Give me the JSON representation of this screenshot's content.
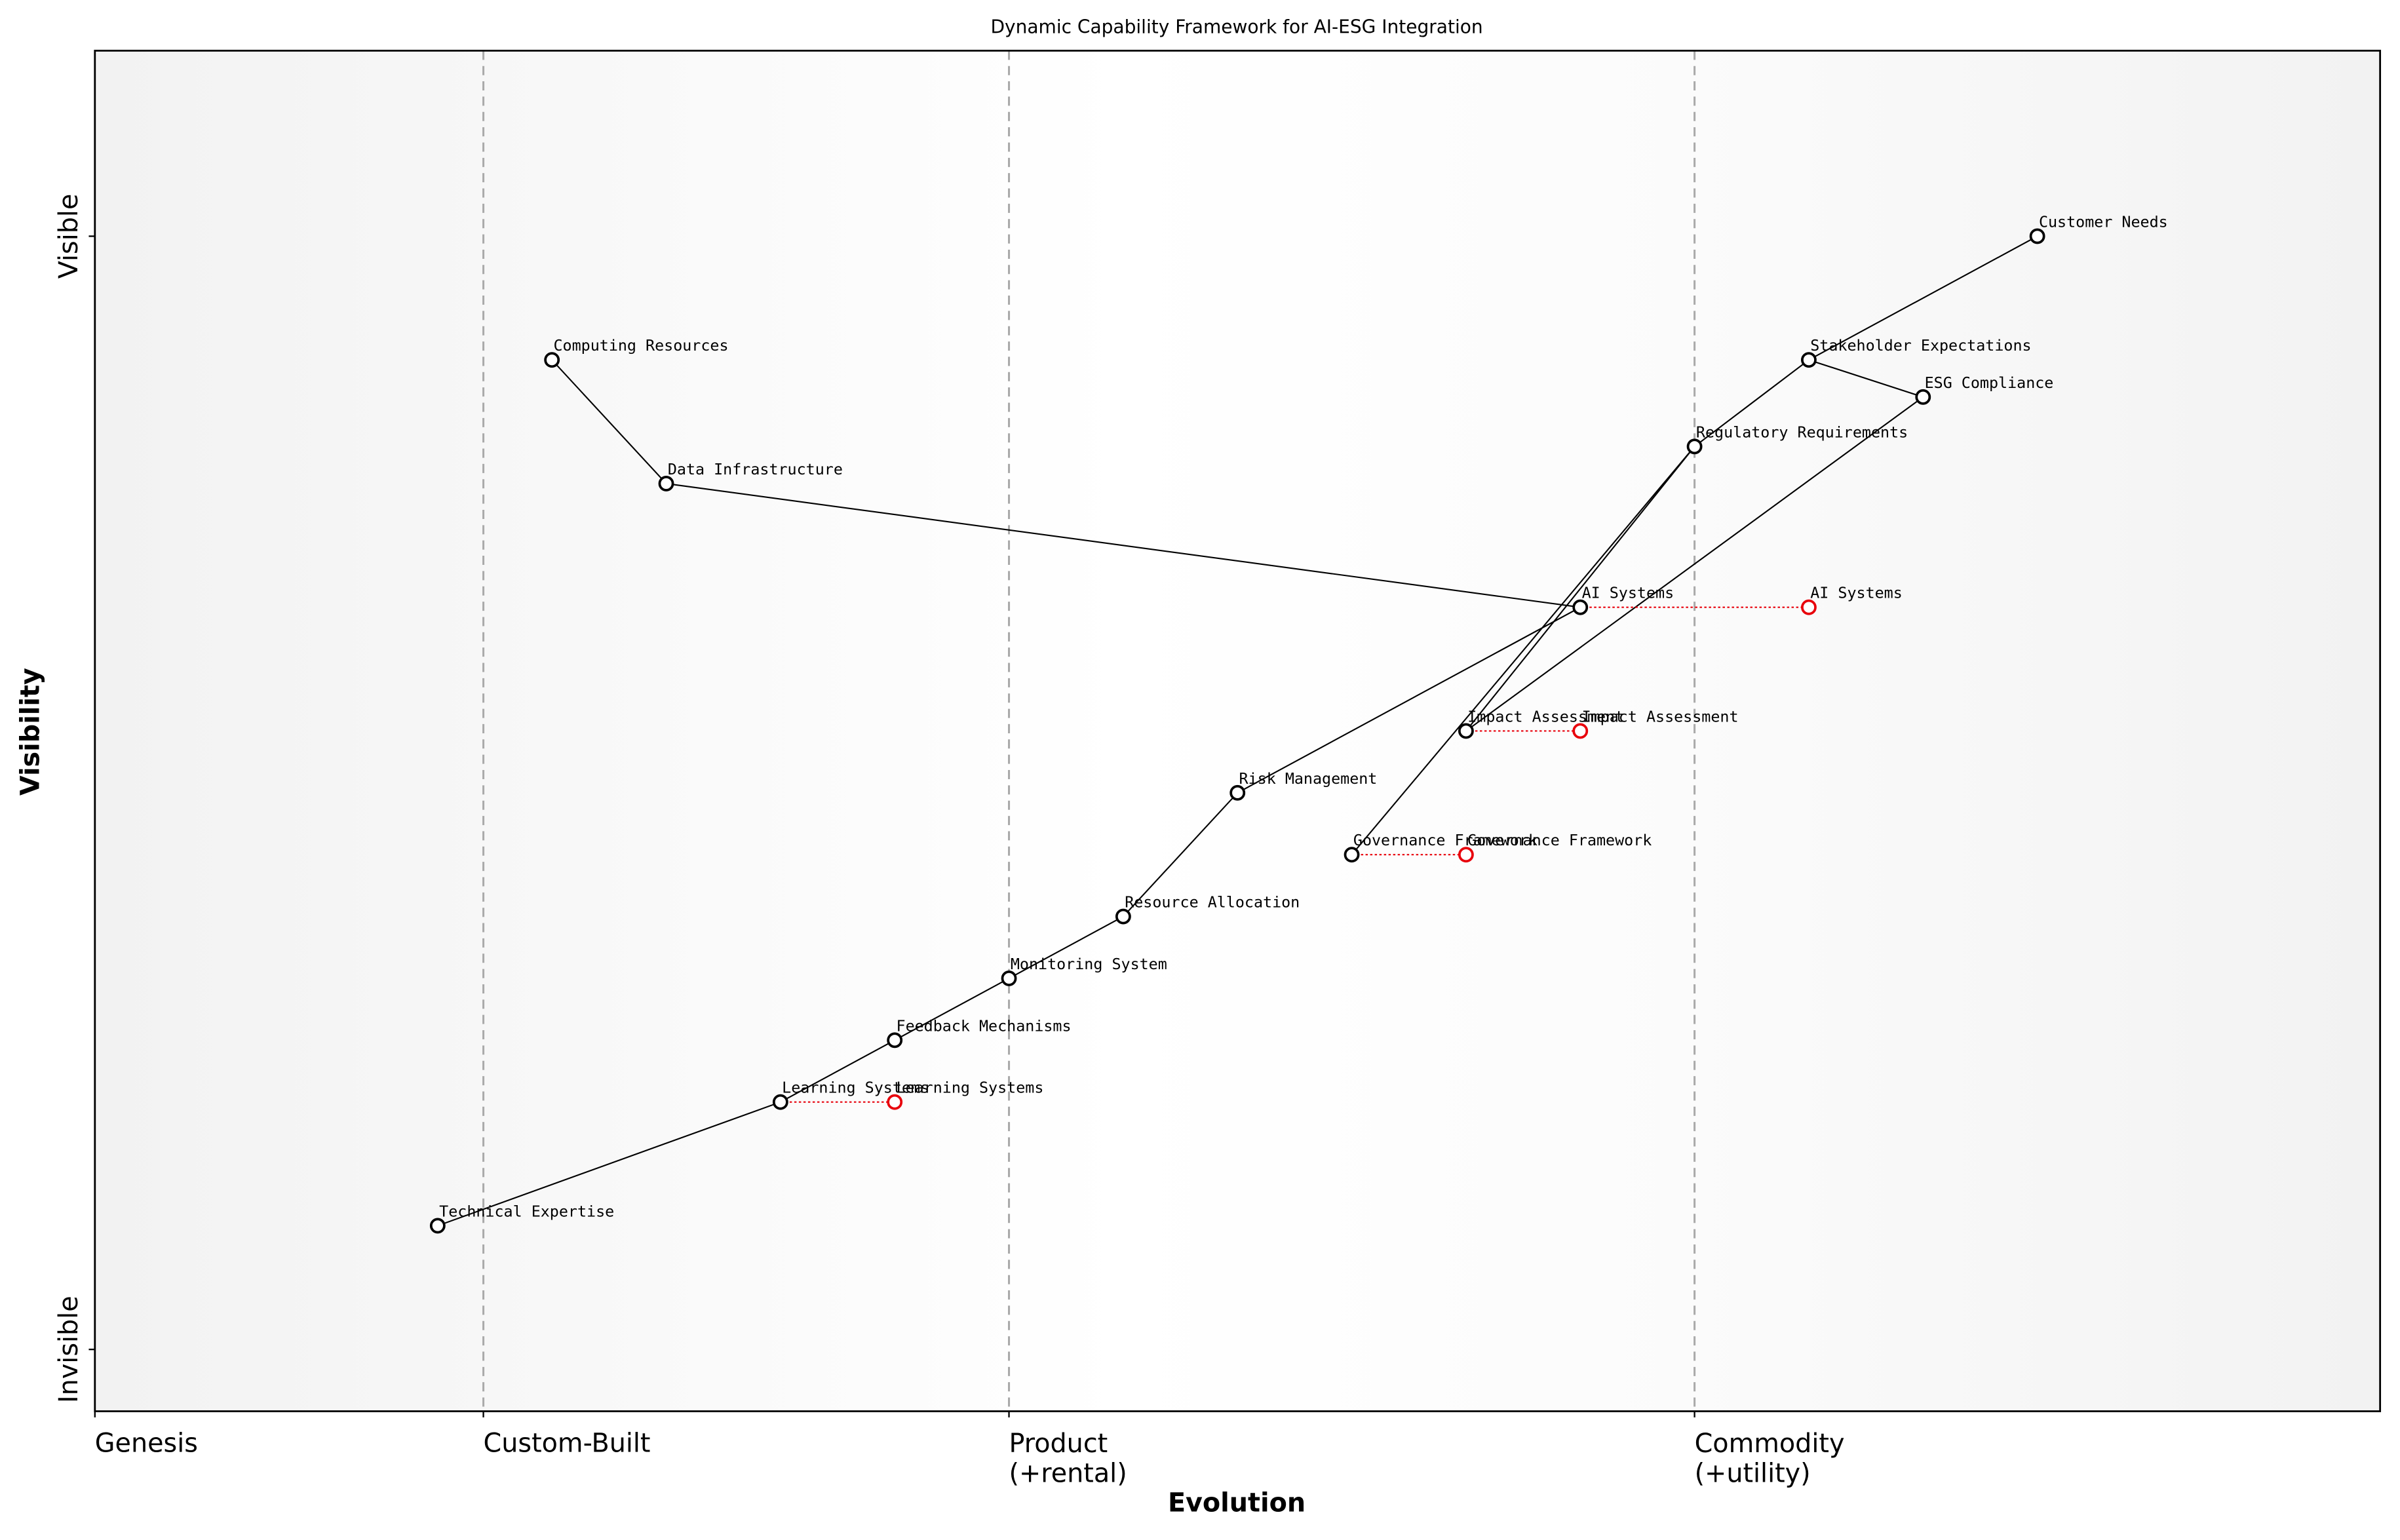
{
  "chart_data": {
    "type": "wardley",
    "title": "Dynamic Capability Framework for AI-ESG Integration",
    "x_label": "Evolution",
    "y_label": "Visibility",
    "xlim": [
      0,
      1
    ],
    "ylim": [
      0,
      1.1
    ],
    "xticks": [
      {
        "value": 0,
        "label": "Genesis"
      },
      {
        "value": 0.17,
        "label": "Custom-Built"
      },
      {
        "value": 0.4,
        "label": "Product\n(+rental)"
      },
      {
        "value": 0.7,
        "label": "Commodity\n(+utility)"
      }
    ],
    "yticks": [
      {
        "value": 0.05,
        "label": "Invisible"
      },
      {
        "value": 0.95,
        "label": "Visible"
      }
    ],
    "stage_lines": true,
    "node_color": "#000000",
    "evolved_color": "#e8000b",
    "nodes": [
      {
        "name": "Customer Needs",
        "x": 0.85,
        "y": 0.95
      },
      {
        "name": "Stakeholder Expectations",
        "x": 0.75,
        "y": 0.85
      },
      {
        "name": "ESG Compliance",
        "x": 0.8,
        "y": 0.82
      },
      {
        "name": "Regulatory Requirements",
        "x": 0.7,
        "y": 0.78
      },
      {
        "name": "Computing Resources",
        "x": 0.2,
        "y": 0.85
      },
      {
        "name": "Data Infrastructure",
        "x": 0.25,
        "y": 0.75
      },
      {
        "name": "AI Systems",
        "x": 0.65,
        "y": 0.65
      },
      {
        "name": "Impact Assessment",
        "x": 0.6,
        "y": 0.55
      },
      {
        "name": "Risk Management",
        "x": 0.5,
        "y": 0.5
      },
      {
        "name": "Governance Framework",
        "x": 0.55,
        "y": 0.45
      },
      {
        "name": "Resource Allocation",
        "x": 0.45,
        "y": 0.4
      },
      {
        "name": "Monitoring System",
        "x": 0.4,
        "y": 0.35
      },
      {
        "name": "Feedback Mechanisms",
        "x": 0.35,
        "y": 0.3
      },
      {
        "name": "Learning Systems",
        "x": 0.3,
        "y": 0.25
      },
      {
        "name": "Technical Expertise",
        "x": 0.15,
        "y": 0.15
      }
    ],
    "links": [
      [
        "Customer Needs",
        "Stakeholder Expectations"
      ],
      [
        "Stakeholder Expectations",
        "ESG Compliance"
      ],
      [
        "Stakeholder Expectations",
        "Regulatory Requirements"
      ],
      [
        "Regulatory Requirements",
        "Governance Framework"
      ],
      [
        "Regulatory Requirements",
        "Impact Assessment"
      ],
      [
        "ESG Compliance",
        "Impact Assessment"
      ],
      [
        "Computing Resources",
        "Data Infrastructure"
      ],
      [
        "Data Infrastructure",
        "AI Systems"
      ],
      [
        "AI Systems",
        "Risk Management"
      ],
      [
        "Risk Management",
        "Resource Allocation"
      ],
      [
        "Resource Allocation",
        "Monitoring System"
      ],
      [
        "Monitoring System",
        "Feedback Mechanisms"
      ],
      [
        "Feedback Mechanisms",
        "Learning Systems"
      ],
      [
        "Learning Systems",
        "Technical Expertise"
      ]
    ],
    "evolved": [
      {
        "name": "AI Systems",
        "x": 0.75,
        "y": 0.65
      },
      {
        "name": "Impact Assessment",
        "x": 0.65,
        "y": 0.55
      },
      {
        "name": "Governance Framework",
        "x": 0.6,
        "y": 0.45
      },
      {
        "name": "Learning Systems",
        "x": 0.35,
        "y": 0.25
      }
    ]
  }
}
